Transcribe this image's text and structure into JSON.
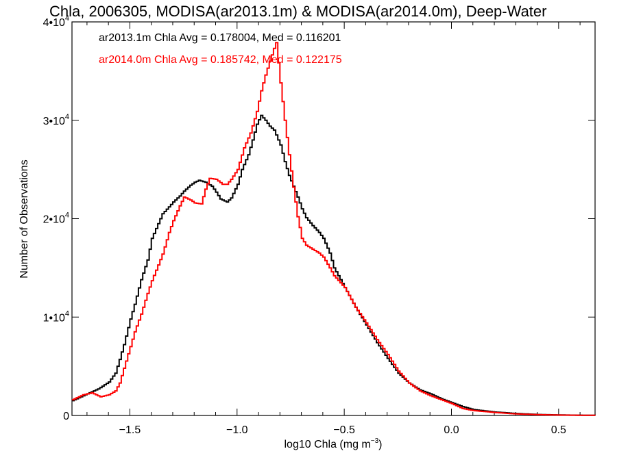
{
  "chart_data": {
    "type": "line",
    "title": "Chla, 2006305, MODISA(ar2013.1m) & MODISA(ar2014.0m), Deep-Water",
    "xlabel": "log10 Chla (mg m",
    "xlabel_sup": "−3",
    "xlabel_close": ")",
    "ylabel": "Number of Observations",
    "xlim": [
      -1.77,
      0.67
    ],
    "ylim": [
      0,
      40000
    ],
    "x_ticks": [
      {
        "value": -1.5,
        "label": "−1.5"
      },
      {
        "value": -1.0,
        "label": "−1.0"
      },
      {
        "value": -0.5,
        "label": "−0.5"
      },
      {
        "value": 0.0,
        "label": "0.0"
      },
      {
        "value": 0.5,
        "label": "0.5"
      }
    ],
    "y_ticks": [
      {
        "value": 0,
        "base": "0",
        "exp": ""
      },
      {
        "value": 10000,
        "base": "1•10",
        "exp": "4"
      },
      {
        "value": 20000,
        "base": "2•10",
        "exp": "4"
      },
      {
        "value": 30000,
        "base": "3•10",
        "exp": "4"
      },
      {
        "value": 40000,
        "base": "4•10",
        "exp": "4"
      }
    ],
    "grid": false,
    "series": [
      {
        "name": "ar2013.1m",
        "color": "#000000",
        "stat_text": "ar2013.1m Chla Avg = 0.178004, Med = 0.116201",
        "points": [
          [
            -1.77,
            1500
          ],
          [
            -1.7,
            2200
          ],
          [
            -1.65,
            2700
          ],
          [
            -1.6,
            3400
          ],
          [
            -1.57,
            4300
          ],
          [
            -1.55,
            5700
          ],
          [
            -1.53,
            7200
          ],
          [
            -1.5,
            9800
          ],
          [
            -1.48,
            11300
          ],
          [
            -1.45,
            13800
          ],
          [
            -1.42,
            15800
          ],
          [
            -1.4,
            18000
          ],
          [
            -1.37,
            19500
          ],
          [
            -1.35,
            20500
          ],
          [
            -1.32,
            21200
          ],
          [
            -1.3,
            21700
          ],
          [
            -1.27,
            22300
          ],
          [
            -1.25,
            22800
          ],
          [
            -1.22,
            23400
          ],
          [
            -1.2,
            23700
          ],
          [
            -1.18,
            23900
          ],
          [
            -1.15,
            23700
          ],
          [
            -1.12,
            23300
          ],
          [
            -1.1,
            22700
          ],
          [
            -1.08,
            22000
          ],
          [
            -1.05,
            21700
          ],
          [
            -1.03,
            22100
          ],
          [
            -1.0,
            23500
          ],
          [
            -0.98,
            25000
          ],
          [
            -0.95,
            26500
          ],
          [
            -0.93,
            28000
          ],
          [
            -0.91,
            29600
          ],
          [
            -0.89,
            30500
          ],
          [
            -0.87,
            30000
          ],
          [
            -0.85,
            29400
          ],
          [
            -0.83,
            29000
          ],
          [
            -0.8,
            27500
          ],
          [
            -0.78,
            25800
          ],
          [
            -0.76,
            24400
          ],
          [
            -0.74,
            23300
          ],
          [
            -0.72,
            22200
          ],
          [
            -0.7,
            21000
          ],
          [
            -0.68,
            20100
          ],
          [
            -0.65,
            19300
          ],
          [
            -0.62,
            18600
          ],
          [
            -0.6,
            18000
          ],
          [
            -0.57,
            16500
          ],
          [
            -0.55,
            15000
          ],
          [
            -0.5,
            13000
          ],
          [
            -0.45,
            11000
          ],
          [
            -0.4,
            9200
          ],
          [
            -0.35,
            7400
          ],
          [
            -0.3,
            5800
          ],
          [
            -0.25,
            4300
          ],
          [
            -0.2,
            3300
          ],
          [
            -0.15,
            2600
          ],
          [
            -0.1,
            2200
          ],
          [
            -0.05,
            1700
          ],
          [
            0.0,
            1300
          ],
          [
            0.05,
            900
          ],
          [
            0.1,
            600
          ],
          [
            0.2,
            350
          ],
          [
            0.3,
            200
          ],
          [
            0.4,
            100
          ],
          [
            0.5,
            50
          ],
          [
            0.67,
            10
          ]
        ]
      },
      {
        "name": "ar2014.0m",
        "color": "#ff0000",
        "stat_text": "ar2014.0m Chla Avg = 0.185742, Med = 0.122175",
        "points": [
          [
            -1.77,
            1600
          ],
          [
            -1.72,
            2100
          ],
          [
            -1.68,
            2300
          ],
          [
            -1.64,
            1900
          ],
          [
            -1.6,
            2100
          ],
          [
            -1.57,
            2500
          ],
          [
            -1.55,
            3300
          ],
          [
            -1.53,
            4800
          ],
          [
            -1.5,
            7000
          ],
          [
            -1.48,
            8500
          ],
          [
            -1.45,
            10300
          ],
          [
            -1.42,
            12400
          ],
          [
            -1.4,
            13700
          ],
          [
            -1.37,
            15300
          ],
          [
            -1.35,
            16400
          ],
          [
            -1.32,
            18600
          ],
          [
            -1.3,
            19800
          ],
          [
            -1.27,
            21300
          ],
          [
            -1.25,
            22200
          ],
          [
            -1.22,
            21900
          ],
          [
            -1.2,
            21600
          ],
          [
            -1.17,
            21500
          ],
          [
            -1.15,
            23000
          ],
          [
            -1.13,
            24100
          ],
          [
            -1.1,
            24000
          ],
          [
            -1.07,
            23500
          ],
          [
            -1.05,
            23500
          ],
          [
            -1.03,
            24000
          ],
          [
            -1.0,
            25000
          ],
          [
            -0.97,
            27200
          ],
          [
            -0.94,
            28700
          ],
          [
            -0.91,
            30900
          ],
          [
            -0.89,
            33000
          ],
          [
            -0.87,
            34600
          ],
          [
            -0.85,
            36000
          ],
          [
            -0.83,
            37300
          ],
          [
            -0.82,
            37900
          ],
          [
            -0.8,
            33800
          ],
          [
            -0.78,
            30000
          ],
          [
            -0.76,
            26500
          ],
          [
            -0.74,
            23200
          ],
          [
            -0.72,
            20200
          ],
          [
            -0.7,
            18000
          ],
          [
            -0.68,
            17300
          ],
          [
            -0.65,
            16900
          ],
          [
            -0.62,
            16500
          ],
          [
            -0.6,
            16100
          ],
          [
            -0.57,
            15000
          ],
          [
            -0.55,
            14200
          ],
          [
            -0.5,
            13000
          ],
          [
            -0.45,
            11000
          ],
          [
            -0.4,
            9400
          ],
          [
            -0.35,
            7700
          ],
          [
            -0.3,
            6200
          ],
          [
            -0.25,
            4500
          ],
          [
            -0.2,
            3300
          ],
          [
            -0.15,
            2500
          ],
          [
            -0.1,
            2000
          ],
          [
            -0.05,
            1600
          ],
          [
            0.0,
            1200
          ],
          [
            0.05,
            700
          ],
          [
            0.1,
            500
          ],
          [
            0.2,
            300
          ],
          [
            0.3,
            150
          ],
          [
            0.4,
            80
          ],
          [
            0.5,
            40
          ],
          [
            0.67,
            10
          ]
        ]
      }
    ]
  }
}
